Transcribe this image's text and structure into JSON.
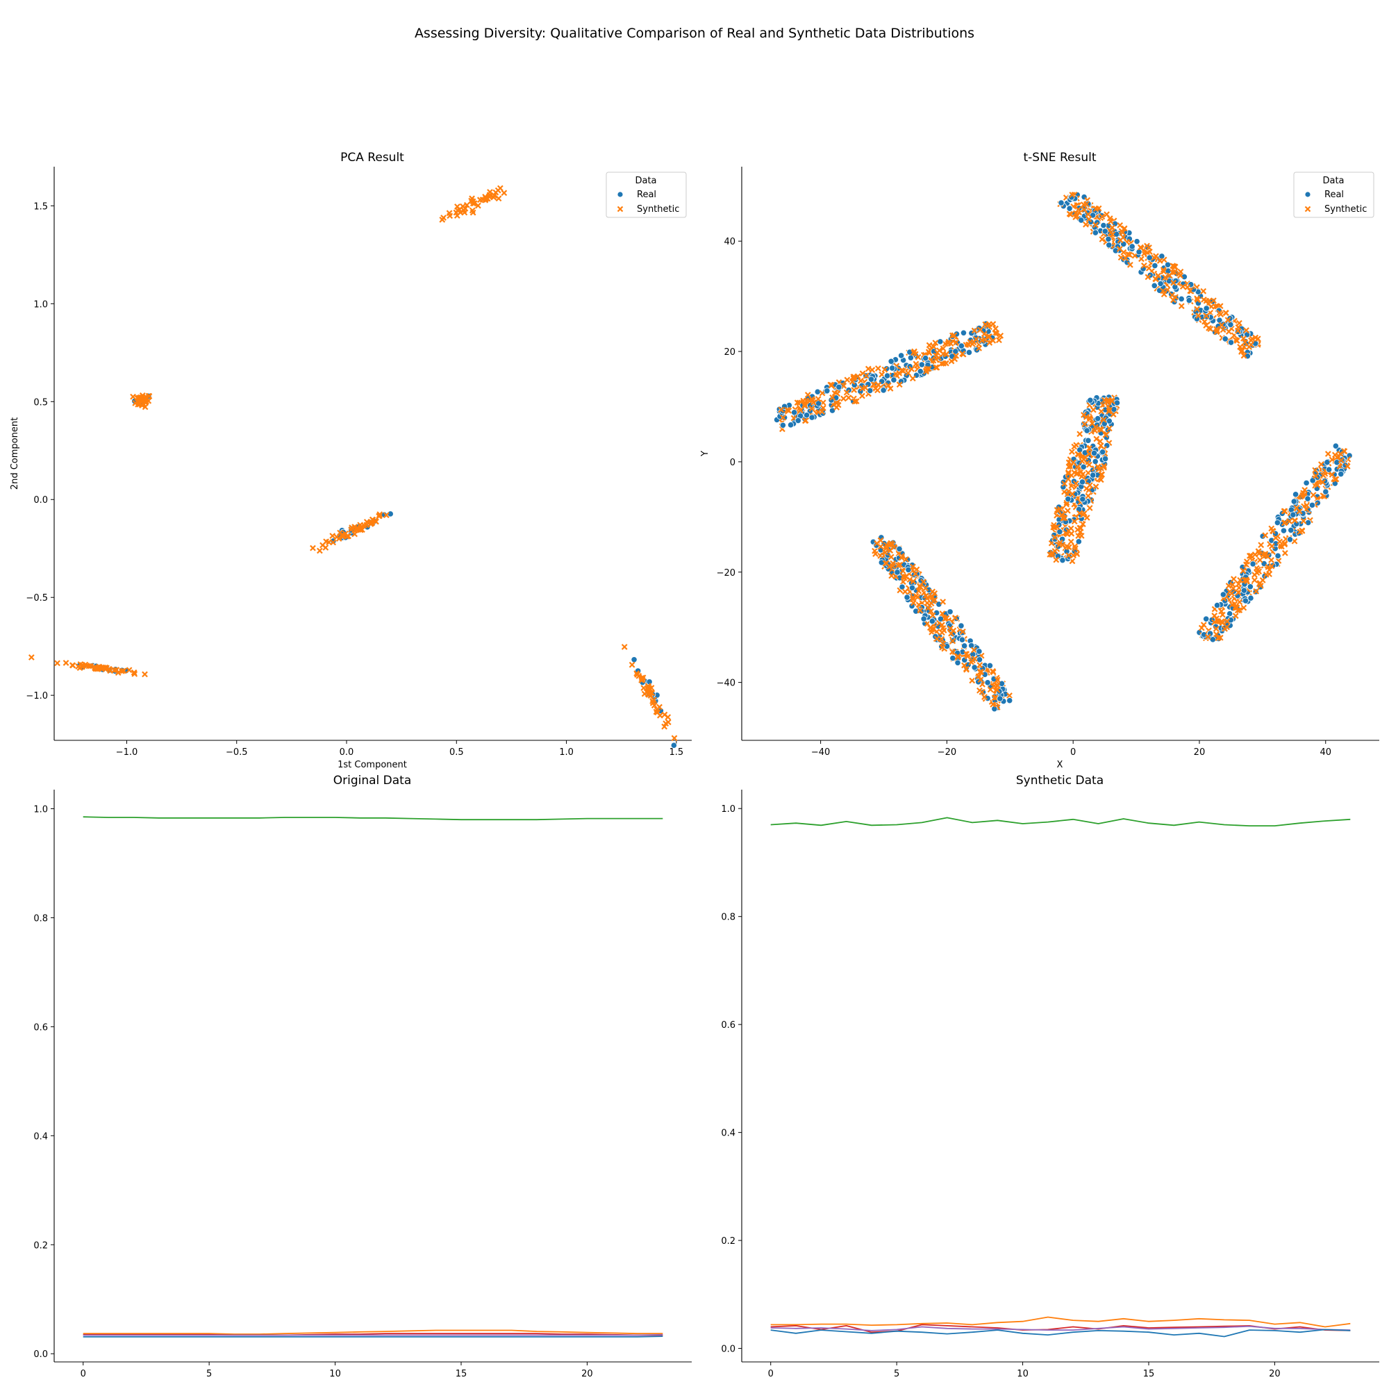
{
  "figure": {
    "title": "Assessing Diversity: Qualitative Comparison of Real and Synthetic Data Distributions"
  },
  "colors": {
    "real": "#1f77b4",
    "synthetic": "#ff7f0e",
    "green": "#2ca02c",
    "red": "#d62728",
    "purple": "#9467bd"
  },
  "chart_data": [
    {
      "type": "scatter",
      "title": "PCA Result",
      "xlabel": "1st Component",
      "ylabel": "2nd Component",
      "xlim": [
        -1.33,
        1.57
      ],
      "ylim": [
        -1.23,
        1.7
      ],
      "xticks": [
        -1.0,
        -0.5,
        0.0,
        0.5,
        1.0,
        1.5
      ],
      "yticks": [
        -1.0,
        -0.5,
        0.0,
        0.5,
        1.0,
        1.5
      ],
      "legend": {
        "title": "Data",
        "placement": "top-right",
        "entries": [
          "Real",
          "Synthetic"
        ]
      },
      "clusters": [
        {
          "center": [
            0.6,
            1.52
          ],
          "spread": [
            0.08,
            0.04
          ],
          "slope": 0.5,
          "real": 0,
          "synthetic": 40
        },
        {
          "center": [
            -0.93,
            0.505
          ],
          "spread": [
            0.02,
            0.04
          ],
          "slope": 0.0,
          "real": 3,
          "synthetic": 25
        },
        {
          "center": [
            0.03,
            -0.16
          ],
          "spread": [
            0.08,
            0.03
          ],
          "slope": 0.55,
          "real": 20,
          "synthetic": 45
        },
        {
          "center": [
            -1.12,
            -0.86
          ],
          "spread": [
            0.09,
            0.015
          ],
          "slope": -0.15,
          "real": 12,
          "synthetic": 45
        },
        {
          "center": [
            1.38,
            -0.99
          ],
          "spread": [
            0.04,
            0.06
          ],
          "slope": -2.0,
          "real": 15,
          "synthetic": 40
        }
      ]
    },
    {
      "type": "scatter",
      "title": "t-SNE Result",
      "xlabel": "X",
      "ylabel": "Y",
      "xlim": [
        -52.5,
        48.5
      ],
      "ylim": [
        -50.5,
        53.5
      ],
      "xticks": [
        -40,
        -20,
        0,
        20,
        40
      ],
      "yticks": [
        -40,
        -20,
        0,
        20,
        40
      ],
      "legend": {
        "title": "Data",
        "placement": "top-right",
        "entries": [
          "Real",
          "Synthetic"
        ]
      },
      "clusters": [
        {
          "start": [
            -47,
            7.5
          ],
          "end": [
            -12,
            24
          ],
          "width": 2.5,
          "real": 160,
          "synthetic": 200
        },
        {
          "start": [
            -1,
            48
          ],
          "end": [
            29,
            20
          ],
          "width": 2.5,
          "real": 160,
          "synthetic": 200
        },
        {
          "start": [
            -2,
            -18
          ],
          "end": [
            5,
            12
          ],
          "width": 3.0,
          "real": 160,
          "synthetic": 200
        },
        {
          "start": [
            -31,
            -14
          ],
          "end": [
            -11,
            -44
          ],
          "width": 2.5,
          "real": 160,
          "synthetic": 200
        },
        {
          "start": [
            21,
            -32
          ],
          "end": [
            43,
            2
          ],
          "width": 2.5,
          "real": 160,
          "synthetic": 200
        }
      ]
    },
    {
      "type": "line",
      "title": "Original Data",
      "xlim": [
        -1.15,
        24.15
      ],
      "ylim": [
        -0.015,
        1.035
      ],
      "xticks": [
        0,
        5,
        10,
        15,
        20
      ],
      "yticks": [
        0.0,
        0.2,
        0.4,
        0.6,
        0.8,
        1.0
      ],
      "x": [
        0,
        1,
        2,
        3,
        4,
        5,
        6,
        7,
        8,
        9,
        10,
        11,
        12,
        13,
        14,
        15,
        16,
        17,
        18,
        19,
        20,
        21,
        22,
        23
      ],
      "series": [
        {
          "color": "#2ca02c",
          "values": [
            0.985,
            0.984,
            0.984,
            0.983,
            0.983,
            0.983,
            0.983,
            0.983,
            0.984,
            0.984,
            0.984,
            0.983,
            0.983,
            0.982,
            0.981,
            0.98,
            0.98,
            0.98,
            0.98,
            0.981,
            0.982,
            0.982,
            0.982,
            0.982
          ]
        },
        {
          "color": "#ff7f0e",
          "values": [
            0.037,
            0.037,
            0.037,
            0.037,
            0.037,
            0.037,
            0.036,
            0.036,
            0.037,
            0.038,
            0.039,
            0.04,
            0.041,
            0.042,
            0.043,
            0.043,
            0.043,
            0.043,
            0.041,
            0.04,
            0.039,
            0.038,
            0.037,
            0.037
          ]
        },
        {
          "color": "#d62728",
          "values": [
            0.035,
            0.035,
            0.035,
            0.035,
            0.035,
            0.035,
            0.034,
            0.034,
            0.034,
            0.035,
            0.036,
            0.036,
            0.037,
            0.037,
            0.037,
            0.037,
            0.037,
            0.037,
            0.037,
            0.036,
            0.036,
            0.035,
            0.034,
            0.034
          ]
        },
        {
          "color": "#9467bd",
          "values": [
            0.034,
            0.034,
            0.034,
            0.034,
            0.034,
            0.034,
            0.034,
            0.034,
            0.034,
            0.034,
            0.034,
            0.034,
            0.034,
            0.034,
            0.034,
            0.034,
            0.034,
            0.034,
            0.034,
            0.034,
            0.034,
            0.034,
            0.034,
            0.035
          ]
        },
        {
          "color": "#1f77b4",
          "values": [
            0.031,
            0.031,
            0.031,
            0.031,
            0.031,
            0.031,
            0.031,
            0.031,
            0.031,
            0.031,
            0.031,
            0.031,
            0.031,
            0.031,
            0.031,
            0.031,
            0.031,
            0.031,
            0.031,
            0.031,
            0.031,
            0.031,
            0.031,
            0.032
          ]
        }
      ]
    },
    {
      "type": "line",
      "title": "Synthetic Data",
      "xlim": [
        -1.15,
        24.15
      ],
      "ylim": [
        -0.025,
        1.035
      ],
      "xticks": [
        0,
        5,
        10,
        15,
        20
      ],
      "yticks": [
        0.0,
        0.2,
        0.4,
        0.6,
        0.8,
        1.0
      ],
      "x": [
        0,
        1,
        2,
        3,
        4,
        5,
        6,
        7,
        8,
        9,
        10,
        11,
        12,
        13,
        14,
        15,
        16,
        17,
        18,
        19,
        20,
        21,
        22,
        23
      ],
      "series": [
        {
          "color": "#2ca02c",
          "values": [
            0.97,
            0.973,
            0.969,
            0.976,
            0.969,
            0.97,
            0.974,
            0.983,
            0.974,
            0.978,
            0.972,
            0.975,
            0.98,
            0.972,
            0.981,
            0.973,
            0.969,
            0.975,
            0.97,
            0.968,
            0.968,
            0.973,
            0.977,
            0.98
          ]
        },
        {
          "color": "#ff7f0e",
          "values": [
            0.044,
            0.044,
            0.045,
            0.045,
            0.043,
            0.044,
            0.046,
            0.047,
            0.044,
            0.048,
            0.05,
            0.058,
            0.052,
            0.05,
            0.055,
            0.05,
            0.052,
            0.055,
            0.053,
            0.052,
            0.045,
            0.048,
            0.04,
            0.046
          ]
        },
        {
          "color": "#d62728",
          "values": [
            0.04,
            0.042,
            0.035,
            0.042,
            0.03,
            0.032,
            0.044,
            0.042,
            0.04,
            0.038,
            0.034,
            0.035,
            0.04,
            0.036,
            0.042,
            0.038,
            0.039,
            0.04,
            0.041,
            0.042,
            0.036,
            0.04,
            0.034,
            0.033
          ]
        },
        {
          "color": "#9467bd",
          "values": [
            0.038,
            0.037,
            0.038,
            0.036,
            0.033,
            0.035,
            0.04,
            0.037,
            0.036,
            0.036,
            0.035,
            0.034,
            0.034,
            0.037,
            0.04,
            0.036,
            0.037,
            0.038,
            0.039,
            0.041,
            0.037,
            0.037,
            0.035,
            0.034
          ]
        },
        {
          "color": "#1f77b4",
          "values": [
            0.034,
            0.028,
            0.034,
            0.031,
            0.028,
            0.032,
            0.03,
            0.027,
            0.03,
            0.034,
            0.028,
            0.025,
            0.03,
            0.033,
            0.032,
            0.03,
            0.025,
            0.028,
            0.022,
            0.034,
            0.033,
            0.03,
            0.035,
            0.033
          ]
        }
      ]
    }
  ]
}
